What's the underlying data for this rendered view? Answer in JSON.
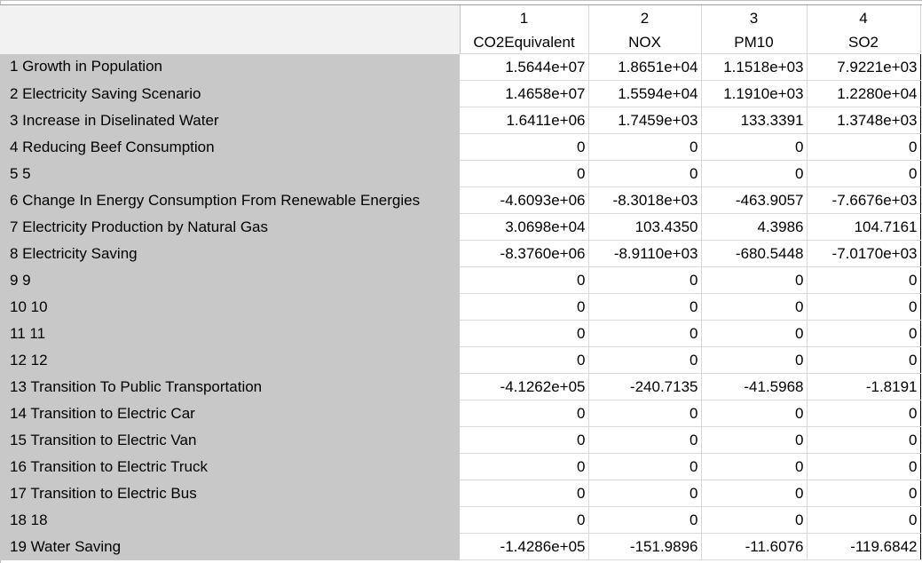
{
  "columns": [
    {
      "num": "1",
      "name": "CO2Equivalent"
    },
    {
      "num": "2",
      "name": "NOX"
    },
    {
      "num": "3",
      "name": "PM10"
    },
    {
      "num": "4",
      "name": "SO2"
    }
  ],
  "rows": [
    {
      "label": "1 Growth in Population",
      "values": [
        "1.5644e+07",
        "1.8651e+04",
        "1.1518e+03",
        "7.9221e+03"
      ]
    },
    {
      "label": "2 Electricity Saving Scenario",
      "values": [
        "1.4658e+07",
        "1.5594e+04",
        "1.1910e+03",
        "1.2280e+04"
      ]
    },
    {
      "label": "3 Increase in Diselinated Water",
      "values": [
        "1.6411e+06",
        "1.7459e+03",
        "133.3391",
        "1.3748e+03"
      ]
    },
    {
      "label": "4 Reducing Beef Consumption",
      "values": [
        "0",
        "0",
        "0",
        "0"
      ]
    },
    {
      "label": "5 5",
      "values": [
        "0",
        "0",
        "0",
        "0"
      ]
    },
    {
      "label": "6 Change In Energy Consumption From Renewable Energies",
      "values": [
        "-4.6093e+06",
        "-8.3018e+03",
        "-463.9057",
        "-7.6676e+03"
      ]
    },
    {
      "label": "7 Electricity Production by Natural Gas",
      "values": [
        "3.0698e+04",
        "103.4350",
        "4.3986",
        "104.7161"
      ]
    },
    {
      "label": "8 Electricity Saving",
      "values": [
        "-8.3760e+06",
        "-8.9110e+03",
        "-680.5448",
        "-7.0170e+03"
      ]
    },
    {
      "label": "9 9",
      "values": [
        "0",
        "0",
        "0",
        "0"
      ]
    },
    {
      "label": "10 10",
      "values": [
        "0",
        "0",
        "0",
        "0"
      ]
    },
    {
      "label": "11 11",
      "values": [
        "0",
        "0",
        "0",
        "0"
      ]
    },
    {
      "label": "12 12",
      "values": [
        "0",
        "0",
        "0",
        "0"
      ]
    },
    {
      "label": "13 Transition To Public Transportation",
      "values": [
        "-4.1262e+05",
        "-240.7135",
        "-41.5968",
        "-1.8191"
      ]
    },
    {
      "label": "14 Transition to Electric Car",
      "values": [
        "0",
        "0",
        "0",
        "0"
      ]
    },
    {
      "label": "15 Transition to Electric Van",
      "values": [
        "0",
        "0",
        "0",
        "0"
      ]
    },
    {
      "label": "16 Transition to Electric Truck",
      "values": [
        "0",
        "0",
        "0",
        "0"
      ]
    },
    {
      "label": "17 Transition to Electric Bus",
      "values": [
        "0",
        "0",
        "0",
        "0"
      ]
    },
    {
      "label": "18 18",
      "values": [
        "0",
        "0",
        "0",
        "0"
      ]
    },
    {
      "label": "19 Water Saving",
      "values": [
        "-1.4286e+05",
        "-151.9896",
        "-11.6076",
        "-119.6842"
      ]
    }
  ]
}
